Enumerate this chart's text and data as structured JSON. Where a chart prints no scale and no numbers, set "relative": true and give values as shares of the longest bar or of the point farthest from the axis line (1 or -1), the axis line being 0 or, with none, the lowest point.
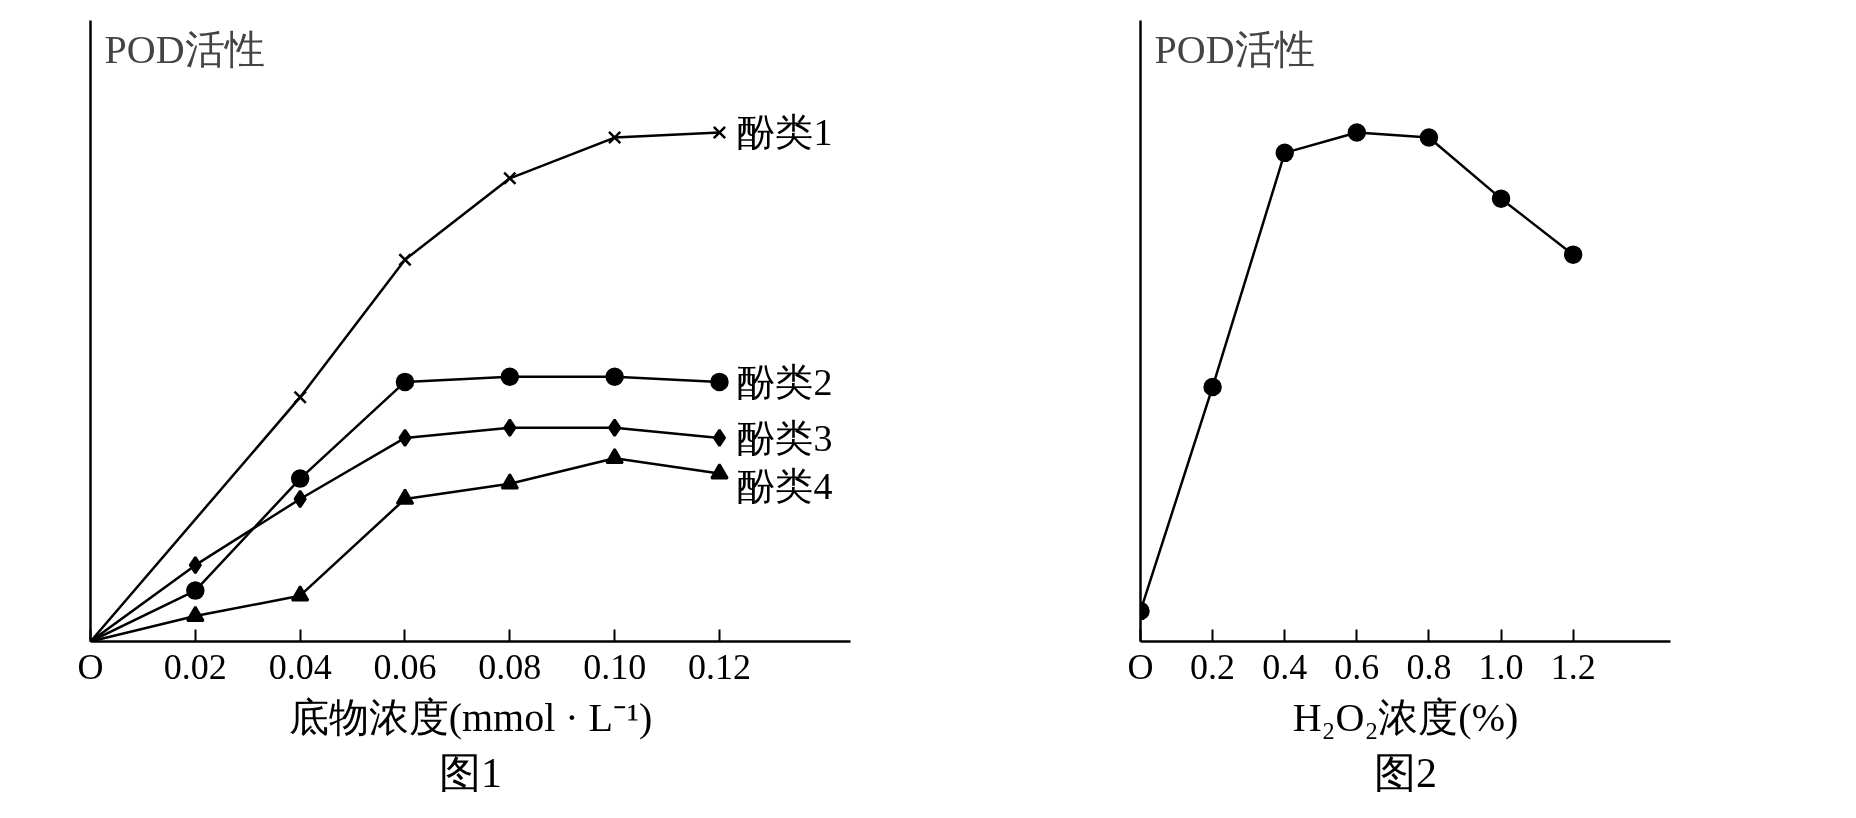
{
  "chart_data": [
    {
      "type": "line",
      "title": "图1",
      "xlabel": "底物浓度(mmol · L⁻¹)",
      "ylabel": "POD活性",
      "relative": true,
      "annotations": [
        "O"
      ],
      "grid": false,
      "xlim": [
        0,
        0.145
      ],
      "xticks": [
        0.02,
        0.04,
        0.06,
        0.08,
        {
          "value": 0.1,
          "label": "0.10"
        },
        0.12
      ],
      "series": [
        {
          "name": "酚类1",
          "color": "#000000",
          "marker": "cross",
          "x": [
            0,
            0.04,
            0.06,
            0.08,
            0.1,
            0.12
          ],
          "values": [
            0,
            0.48,
            0.75,
            0.91,
            0.99,
            1
          ]
        },
        {
          "name": "酚类2",
          "color": "#000000",
          "marker": "circle",
          "x": [
            0,
            0.02,
            0.04,
            0.06,
            0.08,
            0.1,
            0.12
          ],
          "values": [
            0,
            0.1,
            0.32,
            0.51,
            0.52,
            0.52,
            0.51
          ]
        },
        {
          "name": "酚类3",
          "color": "#000000",
          "marker": "diamond",
          "x": [
            0,
            0.02,
            0.04,
            0.06,
            0.08,
            0.1,
            0.12
          ],
          "values": [
            0,
            0.15,
            0.28,
            0.4,
            0.42,
            0.42,
            0.4
          ]
        },
        {
          "name": "酚类4",
          "color": "#000000",
          "marker": "triangle",
          "x": [
            0,
            0.02,
            0.04,
            0.06,
            0.08,
            0.1,
            0.12
          ],
          "values": [
            0,
            0.05,
            0.09,
            0.28,
            0.31,
            0.36,
            0.33
          ]
        }
      ]
    },
    {
      "type": "line",
      "title": "图2",
      "xlabel": "H₂O₂浓度(%)",
      "ylabel": "POD活性",
      "relative": true,
      "annotations": [
        "O"
      ],
      "grid": false,
      "xlim": [
        0,
        1.47
      ],
      "xticks": [
        0.2,
        0.4,
        0.6,
        0.8,
        {
          "value": 1,
          "label": "1.0"
        },
        1.2
      ],
      "series": [
        {
          "color": "#000000",
          "marker": "circle",
          "x": [
            0,
            0.2,
            0.4,
            0.6,
            0.8,
            1.0,
            1.2
          ],
          "values": [
            0.06,
            0.5,
            0.96,
            1,
            0.99,
            0.87,
            0.76
          ]
        }
      ]
    }
  ]
}
